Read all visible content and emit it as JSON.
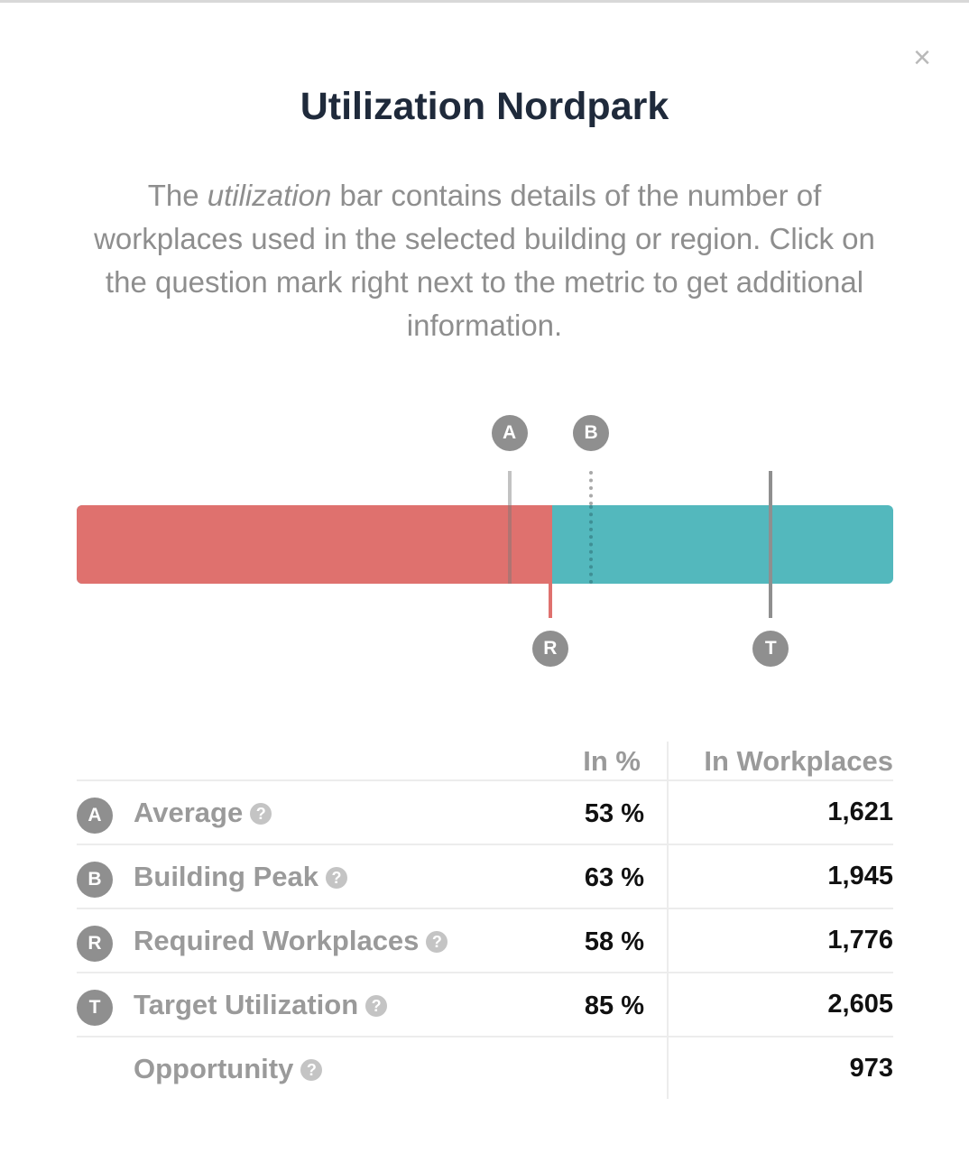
{
  "dialog": {
    "close_glyph": "×",
    "title": "Utilization Nordpark",
    "description": {
      "before": "The ",
      "emphasis": "utilization",
      "after": " bar contains details of the number of workplaces used in the selected building or region. Click on the question mark right next to the metric to get additional information."
    }
  },
  "colors": {
    "required_fill": "#df716e",
    "remaining": "#53b8bd",
    "badge": "#8f8f8f"
  },
  "utilization_bar": {
    "scale_max_percent": 100,
    "fill_percent": 58,
    "markers": [
      {
        "id": "A",
        "percent": 53
      },
      {
        "id": "B",
        "percent": 63
      },
      {
        "id": "R",
        "percent": 58
      },
      {
        "id": "T",
        "percent": 85
      }
    ]
  },
  "table": {
    "headers": {
      "percent": "In %",
      "workplaces": "In Workplaces"
    },
    "rows": [
      {
        "badge": "A",
        "label": "Average",
        "percent": "53 %",
        "workplaces": "1,621"
      },
      {
        "badge": "B",
        "label": "Building Peak",
        "percent": "63 %",
        "workplaces": "1,945"
      },
      {
        "badge": "R",
        "label": "Required Workplaces",
        "percent": "58 %",
        "workplaces": "1,776"
      },
      {
        "badge": "T",
        "label": "Target Utilization",
        "percent": "85 %",
        "workplaces": "2,605"
      },
      {
        "badge": "",
        "label": "Opportunity",
        "percent": "",
        "workplaces": "973"
      }
    ],
    "help_glyph": "?"
  }
}
